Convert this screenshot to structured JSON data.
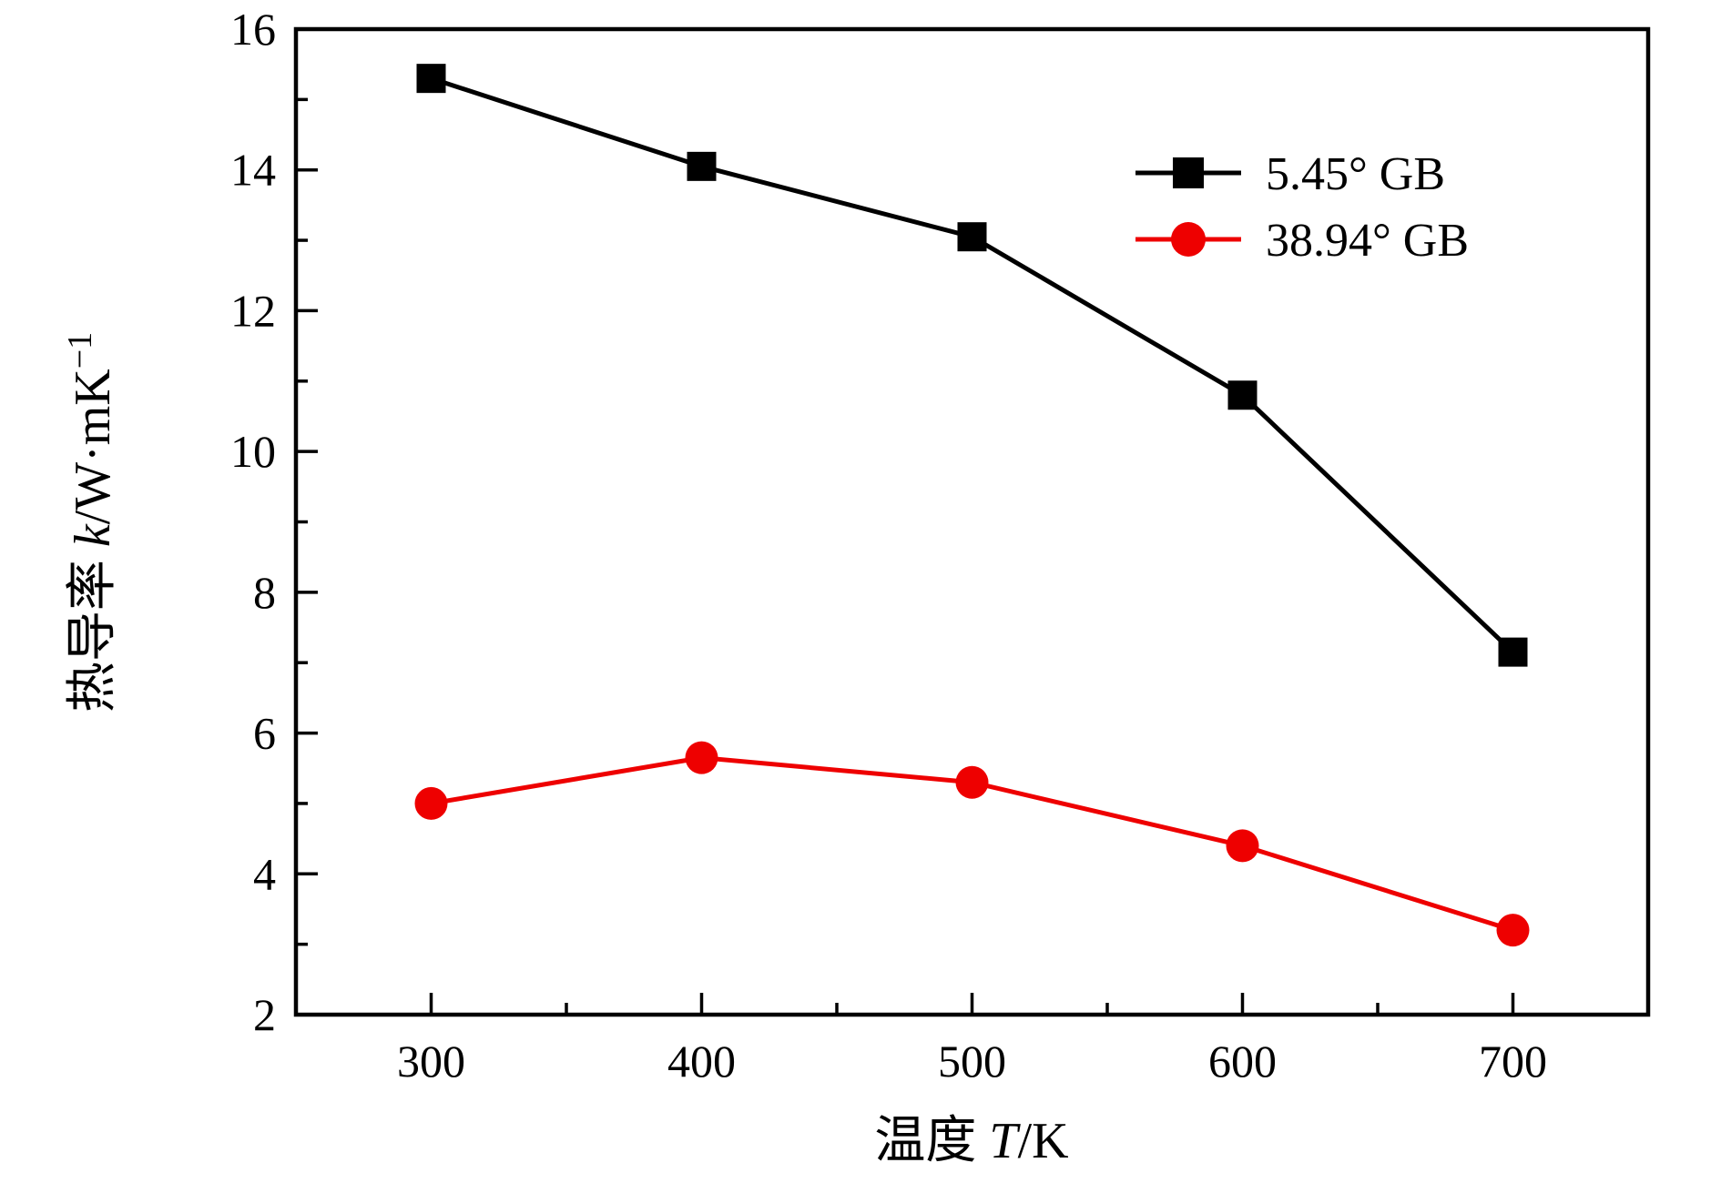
{
  "chart_data": {
    "type": "line",
    "title": "",
    "xlabel": "温度 T/K",
    "ylabel": "热导率 k/W·mK⁻¹",
    "x": [
      300,
      400,
      500,
      600,
      700
    ],
    "series": [
      {
        "name": "5.45° GB",
        "marker": "square",
        "color": "#000000",
        "values": [
          15.3,
          14.05,
          13.05,
          10.8,
          7.15
        ]
      },
      {
        "name": "38.94° GB",
        "marker": "circle",
        "color": "#ee0000",
        "values": [
          5.0,
          5.65,
          5.3,
          4.4,
          3.2
        ]
      }
    ],
    "xlim": [
      250,
      750
    ],
    "ylim": [
      2,
      16
    ],
    "x_major_ticks": [
      300,
      400,
      500,
      600,
      700
    ],
    "y_major_ticks": [
      2,
      4,
      6,
      8,
      10,
      12,
      14,
      16
    ],
    "x_minor_step": 50,
    "y_minor_step": 1,
    "grid": false,
    "legend_position": "upper-right-inside"
  },
  "labels": {
    "xlabel": {
      "prefix": "温度 ",
      "variable": "T",
      "unit": "/K"
    },
    "ylabel": {
      "prefix": "热导率 ",
      "variable": "k",
      "unit": "/W·mK",
      "superscript": "−1"
    }
  },
  "colors": {
    "background": "#ffffff",
    "axis": "#000000",
    "series_black": "#000000",
    "series_red": "#ee0000"
  }
}
